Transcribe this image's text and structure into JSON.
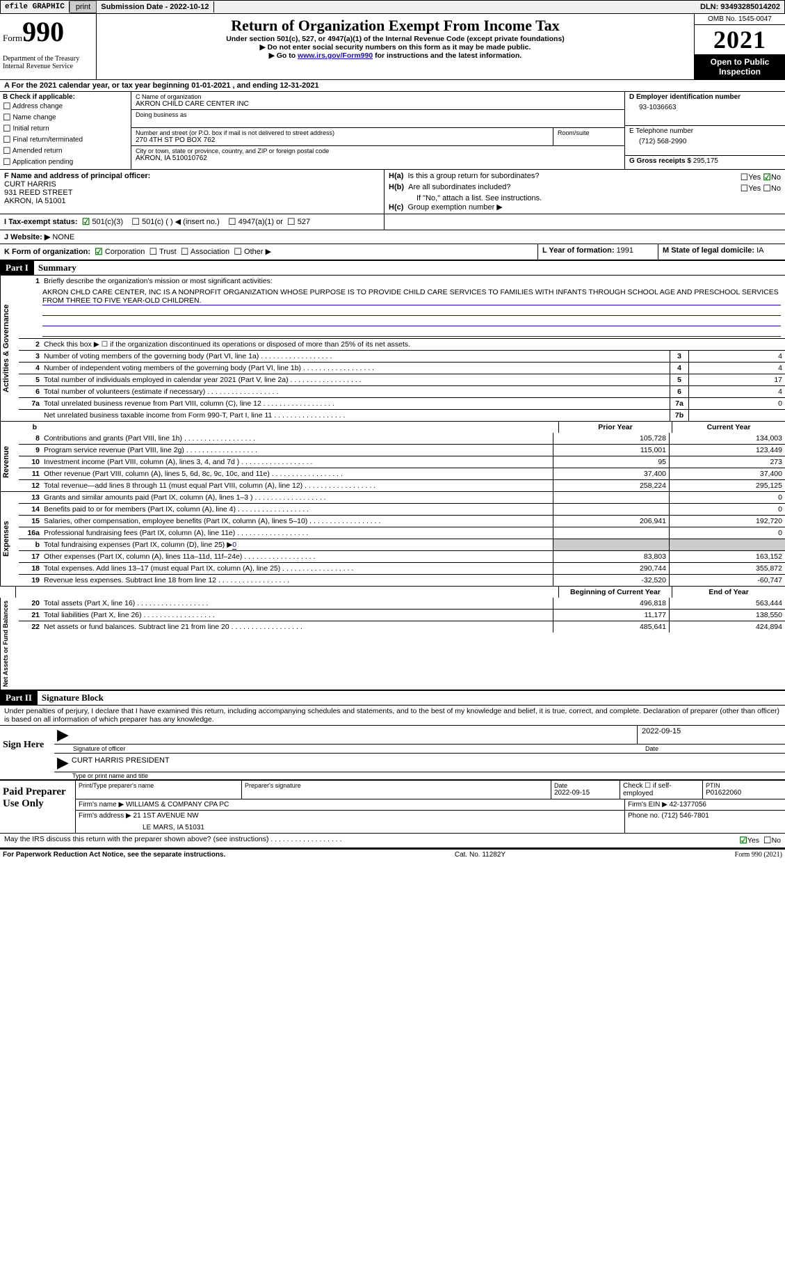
{
  "topbar": {
    "efile": "efile GRAPHIC",
    "print": "print",
    "sub_date_label": "Submission Date - ",
    "sub_date": "2022-10-12",
    "dln_label": "DLN: ",
    "dln": "93493285014202"
  },
  "header": {
    "form_word": "Form",
    "form_no": "990",
    "dept": "Department of the Treasury",
    "irs": "Internal Revenue Service",
    "title": "Return of Organization Exempt From Income Tax",
    "sub1": "Under section 501(c), 527, or 4947(a)(1) of the Internal Revenue Code (except private foundations)",
    "sub2": "Do not enter social security numbers on this form as it may be made public.",
    "sub3a": "Go to ",
    "sub3_link": "www.irs.gov/Form990",
    "sub3b": " for instructions and the latest information.",
    "omb": "OMB No. 1545-0047",
    "year": "2021",
    "open": "Open to Public Inspection"
  },
  "period": {
    "a": "A For the 2021 calendar year, or tax year beginning ",
    "begin": "01-01-2021",
    "mid": "  , and ending ",
    "end": "12-31-2021"
  },
  "b": {
    "label": "B Check if applicable:",
    "opts": [
      "Address change",
      "Name change",
      "Initial return",
      "Final return/terminated",
      "Amended return",
      "Application pending"
    ]
  },
  "c": {
    "name_label": "C Name of organization",
    "name": "AKRON CHILD CARE CENTER INC",
    "dba_label": "Doing business as",
    "street_label": "Number and street (or P.O. box if mail is not delivered to street address)",
    "room_label": "Room/suite",
    "street": "270 4TH ST PO BOX 762",
    "city_label": "City or town, state or province, country, and ZIP or foreign postal code",
    "city": "AKRON, IA  510010762"
  },
  "d": {
    "label": "D Employer identification number",
    "val": "93-1036663"
  },
  "e": {
    "label": "E Telephone number",
    "val": "(712) 568-2990"
  },
  "g": {
    "label": "G Gross receipts $ ",
    "val": "295,175"
  },
  "f": {
    "label": "F Name and address of principal officer:",
    "name": "CURT HARRIS",
    "addr1": "931 REED STREET",
    "addr2": "AKRON, IA  51001"
  },
  "h": {
    "a": "H(a)  Is this a group return for subordinates?",
    "b": "H(b)  Are all subordinates included?",
    "b_note": "If \"No,\" attach a list. See instructions.",
    "c": "H(c)  Group exemption number ▶",
    "yes": "Yes",
    "no": "No"
  },
  "i": {
    "label": "I  Tax-exempt status:",
    "o1": "501(c)(3)",
    "o2": "501(c) (  ) ◀ (insert no.)",
    "o3": "4947(a)(1) or",
    "o4": "527"
  },
  "j": {
    "label": "J  Website: ▶",
    "val": "  NONE"
  },
  "k": {
    "label": "K Form of organization:",
    "o1": "Corporation",
    "o2": "Trust",
    "o3": "Association",
    "o4": "Other ▶"
  },
  "l": {
    "label": "L Year of formation: ",
    "val": "1991"
  },
  "m": {
    "label": "M State of legal domicile: ",
    "val": "IA"
  },
  "part1": {
    "num": "Part I",
    "title": "Summary"
  },
  "s1": {
    "num": "1",
    "txt": "Briefly describe the organization's mission or most significant activities:",
    "mission": "AKRON CHLD CARE CENTER, INC IS A NONPROFIT ORGANIZATION WHOSE PURPOSE IS TO PROVIDE CHILD CARE SERVICES TO FAMILIES WITH INFANTS THROUGH SCHOOL AGE AND PRESCHOOL SERVICES FROM THREE TO FIVE YEAR-OLD CHILDREN."
  },
  "s2": {
    "num": "2",
    "txt": "Check this box ▶ ☐  if the organization discontinued its operations or disposed of more than 25% of its net assets."
  },
  "lines_ag": [
    {
      "n": "3",
      "t": "Number of voting members of the governing body (Part VI, line 1a)",
      "box": "3",
      "v": "4"
    },
    {
      "n": "4",
      "t": "Number of independent voting members of the governing body (Part VI, line 1b)",
      "box": "4",
      "v": "4"
    },
    {
      "n": "5",
      "t": "Total number of individuals employed in calendar year 2021 (Part V, line 2a)",
      "box": "5",
      "v": "17"
    },
    {
      "n": "6",
      "t": "Total number of volunteers (estimate if necessary)",
      "box": "6",
      "v": "4"
    },
    {
      "n": "7a",
      "t": "Total unrelated business revenue from Part VIII, column (C), line 12",
      "box": "7a",
      "v": "0"
    },
    {
      "n": "",
      "t": "Net unrelated business taxable income from Form 990-T, Part I, line 11",
      "box": "7b",
      "v": ""
    }
  ],
  "cols": {
    "prior": "Prior Year",
    "current": "Current Year",
    "boy": "Beginning of Current Year",
    "eoy": "End of Year"
  },
  "rev": [
    {
      "n": "8",
      "t": "Contributions and grants (Part VIII, line 1h)",
      "p": "105,728",
      "c": "134,003"
    },
    {
      "n": "9",
      "t": "Program service revenue (Part VIII, line 2g)",
      "p": "115,001",
      "c": "123,449"
    },
    {
      "n": "10",
      "t": "Investment income (Part VIII, column (A), lines 3, 4, and 7d )",
      "p": "95",
      "c": "273"
    },
    {
      "n": "11",
      "t": "Other revenue (Part VIII, column (A), lines 5, 6d, 8c, 9c, 10c, and 11e)",
      "p": "37,400",
      "c": "37,400"
    },
    {
      "n": "12",
      "t": "Total revenue—add lines 8 through 11 (must equal Part VIII, column (A), line 12)",
      "p": "258,224",
      "c": "295,125"
    }
  ],
  "exp": [
    {
      "n": "13",
      "t": "Grants and similar amounts paid (Part IX, column (A), lines 1–3 )",
      "p": "",
      "c": "0"
    },
    {
      "n": "14",
      "t": "Benefits paid to or for members (Part IX, column (A), line 4)",
      "p": "",
      "c": "0"
    },
    {
      "n": "15",
      "t": "Salaries, other compensation, employee benefits (Part IX, column (A), lines 5–10)",
      "p": "206,941",
      "c": "192,720"
    },
    {
      "n": "16a",
      "t": "Professional fundraising fees (Part IX, column (A), line 11e)",
      "p": "",
      "c": "0"
    },
    {
      "n": "b",
      "t": "Total fundraising expenses (Part IX, column (D), line 25) ▶",
      "p": "shade",
      "c": "shade",
      "fund": "0"
    },
    {
      "n": "17",
      "t": "Other expenses (Part IX, column (A), lines 11a–11d, 11f–24e)",
      "p": "83,803",
      "c": "163,152"
    },
    {
      "n": "18",
      "t": "Total expenses. Add lines 13–17 (must equal Part IX, column (A), line 25)",
      "p": "290,744",
      "c": "355,872"
    },
    {
      "n": "19",
      "t": "Revenue less expenses. Subtract line 18 from line 12",
      "p": "-32,520",
      "c": "-60,747"
    }
  ],
  "na": [
    {
      "n": "20",
      "t": "Total assets (Part X, line 16)",
      "p": "496,818",
      "c": "563,444"
    },
    {
      "n": "21",
      "t": "Total liabilities (Part X, line 26)",
      "p": "11,177",
      "c": "138,550"
    },
    {
      "n": "22",
      "t": "Net assets or fund balances. Subtract line 21 from line 20",
      "p": "485,641",
      "c": "424,894"
    }
  ],
  "side": {
    "ag": "Activities & Governance",
    "rev": "Revenue",
    "exp": "Expenses",
    "na": "Net Assets or Fund Balances"
  },
  "part2": {
    "num": "Part II",
    "title": "Signature Block"
  },
  "penalty": "Under penalties of perjury, I declare that I have examined this return, including accompanying schedules and statements, and to the best of my knowledge and belief, it is true, correct, and complete. Declaration of preparer (other than officer) is based on all information of which preparer has any knowledge.",
  "sign": {
    "here": "Sign Here",
    "sig_of": "Signature of officer",
    "date": "Date",
    "date_val": "2022-09-15",
    "name": "CURT HARRIS  PRESIDENT",
    "type": "Type or print name and title"
  },
  "prep": {
    "label": "Paid Preparer Use Only",
    "pname_l": "Print/Type preparer's name",
    "psig_l": "Preparer's signature",
    "pdate_l": "Date",
    "pdate": "2022-09-15",
    "chk_l": "Check ☐ if self-employed",
    "ptin_l": "PTIN",
    "ptin": "P01622060",
    "firm_l": "Firm's name    ▶ ",
    "firm": "WILLIAMS & COMPANY CPA PC",
    "ein_l": "Firm's EIN ▶ ",
    "ein": "42-1377056",
    "addr_l": "Firm's address ▶ ",
    "addr1": "21 1ST AVENUE NW",
    "addr2": "LE MARS, IA  51031",
    "phone_l": "Phone no. ",
    "phone": "(712) 546-7801"
  },
  "discuss": {
    "q": "May the IRS discuss this return with the preparer shown above? (see instructions)",
    "yes": "Yes",
    "no": "No"
  },
  "footer": {
    "left": "For Paperwork Reduction Act Notice, see the separate instructions.",
    "mid": "Cat. No. 11282Y",
    "right": "Form 990 (2021)"
  }
}
